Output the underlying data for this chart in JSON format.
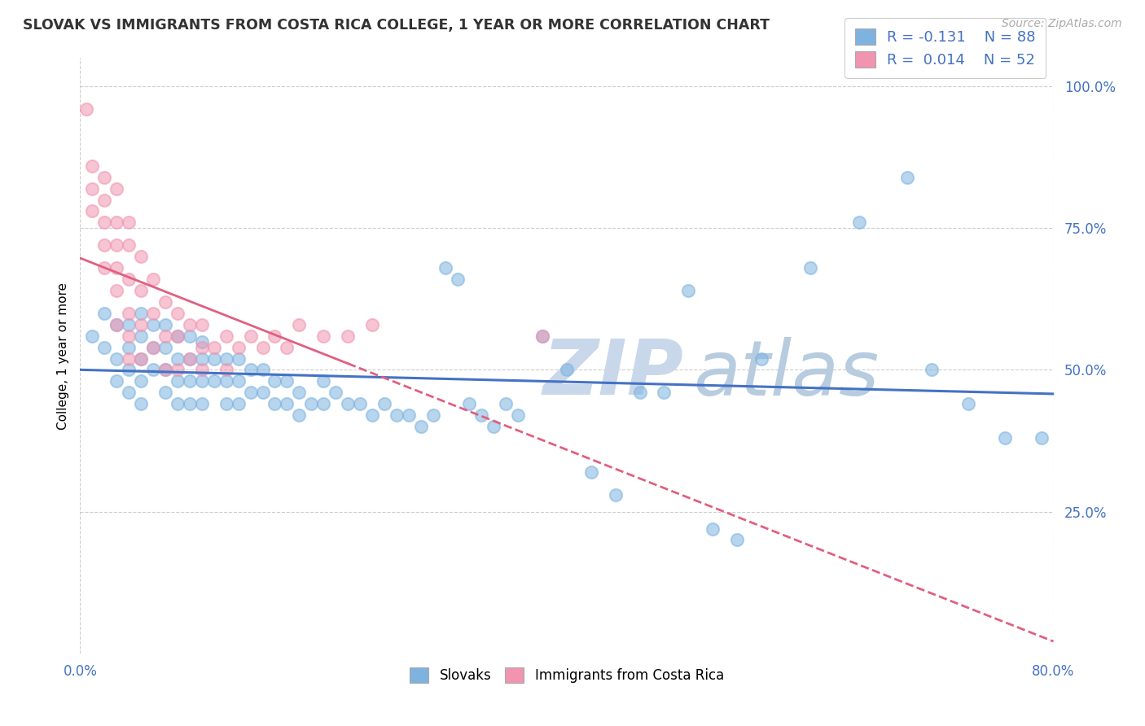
{
  "title": "SLOVAK VS IMMIGRANTS FROM COSTA RICA COLLEGE, 1 YEAR OR MORE CORRELATION CHART",
  "source_text": "Source: ZipAtlas.com",
  "xlim": [
    0.0,
    0.8
  ],
  "ylim": [
    0.0,
    1.05
  ],
  "blue_color": "#7eb3e0",
  "pink_color": "#f094b0",
  "blue_line_color": "#4472c4",
  "pink_line_color": "#e06080",
  "watermark_color": "#c8d8ea",
  "background_color": "#ffffff",
  "grid_color": "#cccccc",
  "title_fontsize": 12.5,
  "tick_label_color": "#4472c4",
  "axis_label_color": "#4472c4",
  "R_blue": -0.131,
  "N_blue": 88,
  "R_pink": 0.014,
  "N_pink": 52,
  "blue_x": [
    0.01,
    0.02,
    0.02,
    0.03,
    0.03,
    0.03,
    0.04,
    0.04,
    0.04,
    0.04,
    0.05,
    0.05,
    0.05,
    0.05,
    0.05,
    0.06,
    0.06,
    0.06,
    0.07,
    0.07,
    0.07,
    0.07,
    0.08,
    0.08,
    0.08,
    0.08,
    0.09,
    0.09,
    0.09,
    0.09,
    0.1,
    0.1,
    0.1,
    0.1,
    0.11,
    0.11,
    0.12,
    0.12,
    0.12,
    0.13,
    0.13,
    0.13,
    0.14,
    0.14,
    0.15,
    0.15,
    0.16,
    0.16,
    0.17,
    0.17,
    0.18,
    0.18,
    0.19,
    0.2,
    0.2,
    0.21,
    0.22,
    0.23,
    0.24,
    0.25,
    0.26,
    0.27,
    0.28,
    0.29,
    0.3,
    0.31,
    0.32,
    0.33,
    0.34,
    0.35,
    0.36,
    0.38,
    0.4,
    0.42,
    0.44,
    0.46,
    0.48,
    0.5,
    0.52,
    0.54,
    0.56,
    0.6,
    0.64,
    0.68,
    0.7,
    0.73,
    0.76,
    0.79
  ],
  "blue_y": [
    0.56,
    0.6,
    0.54,
    0.58,
    0.52,
    0.48,
    0.58,
    0.54,
    0.5,
    0.46,
    0.6,
    0.56,
    0.52,
    0.48,
    0.44,
    0.58,
    0.54,
    0.5,
    0.58,
    0.54,
    0.5,
    0.46,
    0.56,
    0.52,
    0.48,
    0.44,
    0.56,
    0.52,
    0.48,
    0.44,
    0.55,
    0.52,
    0.48,
    0.44,
    0.52,
    0.48,
    0.52,
    0.48,
    0.44,
    0.52,
    0.48,
    0.44,
    0.5,
    0.46,
    0.5,
    0.46,
    0.48,
    0.44,
    0.48,
    0.44,
    0.46,
    0.42,
    0.44,
    0.48,
    0.44,
    0.46,
    0.44,
    0.44,
    0.42,
    0.44,
    0.42,
    0.42,
    0.4,
    0.42,
    0.68,
    0.66,
    0.44,
    0.42,
    0.4,
    0.44,
    0.42,
    0.56,
    0.5,
    0.32,
    0.28,
    0.46,
    0.46,
    0.64,
    0.22,
    0.2,
    0.52,
    0.68,
    0.76,
    0.84,
    0.5,
    0.44,
    0.38,
    0.38
  ],
  "pink_x": [
    0.005,
    0.01,
    0.01,
    0.01,
    0.02,
    0.02,
    0.02,
    0.02,
    0.02,
    0.03,
    0.03,
    0.03,
    0.03,
    0.03,
    0.03,
    0.04,
    0.04,
    0.04,
    0.04,
    0.04,
    0.04,
    0.05,
    0.05,
    0.05,
    0.05,
    0.06,
    0.06,
    0.06,
    0.07,
    0.07,
    0.07,
    0.08,
    0.08,
    0.08,
    0.09,
    0.09,
    0.1,
    0.1,
    0.1,
    0.11,
    0.12,
    0.12,
    0.13,
    0.14,
    0.15,
    0.16,
    0.17,
    0.18,
    0.2,
    0.22,
    0.24,
    0.38
  ],
  "pink_y": [
    0.96,
    0.86,
    0.82,
    0.78,
    0.84,
    0.8,
    0.76,
    0.72,
    0.68,
    0.82,
    0.76,
    0.72,
    0.68,
    0.64,
    0.58,
    0.76,
    0.72,
    0.66,
    0.6,
    0.56,
    0.52,
    0.7,
    0.64,
    0.58,
    0.52,
    0.66,
    0.6,
    0.54,
    0.62,
    0.56,
    0.5,
    0.6,
    0.56,
    0.5,
    0.58,
    0.52,
    0.58,
    0.54,
    0.5,
    0.54,
    0.56,
    0.5,
    0.54,
    0.56,
    0.54,
    0.56,
    0.54,
    0.58,
    0.56,
    0.56,
    0.58,
    0.56
  ]
}
